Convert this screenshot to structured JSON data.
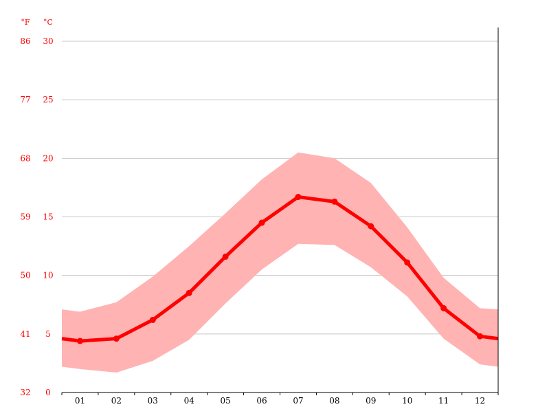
{
  "chart_data": {
    "type": "line",
    "title": "",
    "xlabel": "",
    "ylabel": "",
    "categories": [
      "01",
      "02",
      "03",
      "04",
      "05",
      "06",
      "07",
      "08",
      "09",
      "10",
      "11",
      "12"
    ],
    "x_range": [
      0.5,
      12.5
    ],
    "series": [
      {
        "values": [
          4.4,
          4.6,
          6.2,
          8.5,
          11.6,
          14.5,
          16.7,
          16.3,
          14.2,
          11.1,
          7.2,
          4.8
        ],
        "edge_values": [
          4.6,
          4.6
        ],
        "color": "#ff0000"
      }
    ],
    "range_band": {
      "high": [
        6.9,
        7.7,
        9.9,
        12.5,
        15.3,
        18.2,
        20.5,
        20.0,
        17.9,
        14.1,
        9.8,
        7.2
      ],
      "high_edges": [
        7.1,
        7.1
      ],
      "low": [
        2.0,
        1.7,
        2.7,
        4.5,
        7.6,
        10.5,
        12.7,
        12.6,
        10.7,
        8.2,
        4.6,
        2.4
      ],
      "low_edges": [
        2.2,
        2.2
      ],
      "color": "#ffb3b3"
    },
    "y_axis": {
      "unit_left": "°F",
      "unit_right": "°C",
      "celsius_ticks": [
        "30",
        "25",
        "20",
        "15",
        "10",
        "5",
        "0"
      ],
      "fahrenheit_ticks": [
        "86",
        "77",
        "68",
        "59",
        "50",
        "41",
        "32"
      ],
      "ylim": [
        0,
        30
      ],
      "label_color": "#ff0000"
    },
    "grid": true,
    "legend": "none"
  }
}
